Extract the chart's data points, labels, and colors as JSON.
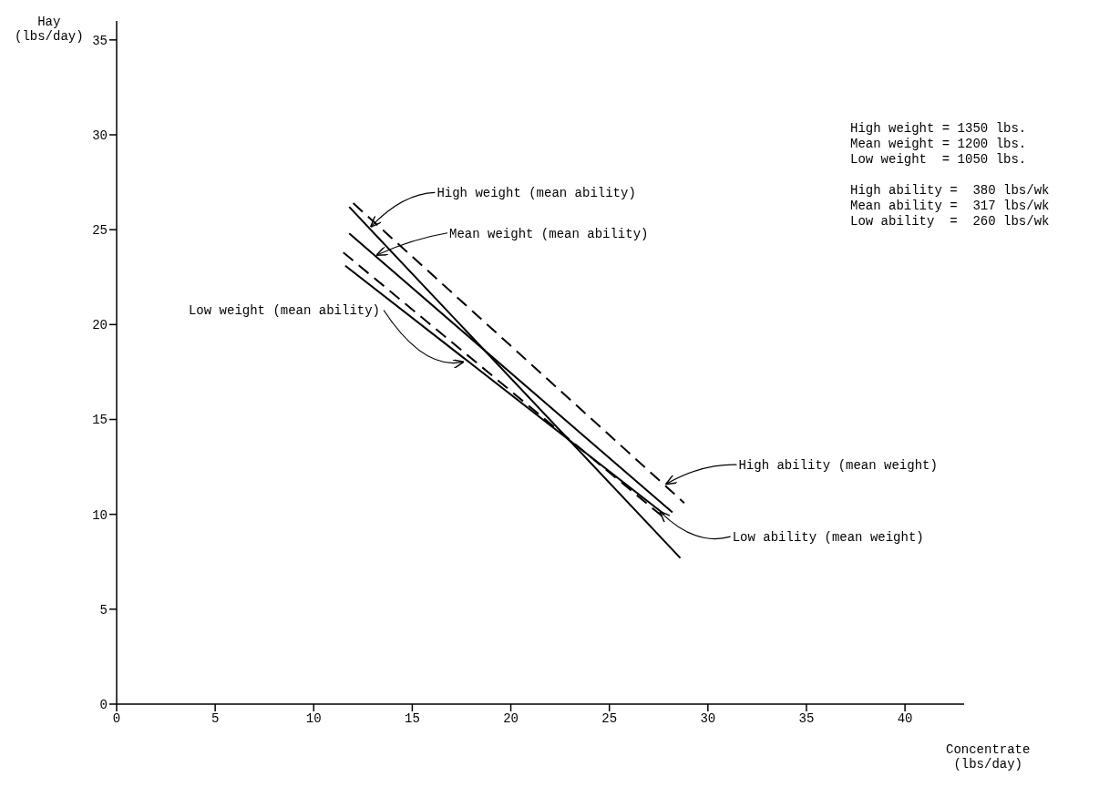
{
  "chart_data": {
    "type": "line",
    "xlabel": "Concentrate\n(lbs/day)",
    "ylabel": "Hay\n(lbs/day)",
    "xlim": [
      0,
      43
    ],
    "xticks": [
      0,
      5,
      10,
      15,
      20,
      25,
      30,
      35,
      40
    ],
    "ylim": [
      0,
      36
    ],
    "yticks": [
      0,
      5,
      10,
      15,
      20,
      25,
      30,
      35
    ],
    "grid": false,
    "legend": false,
    "marker": "none",
    "series": [
      {
        "name": "High weight (mean ability)",
        "color": "#000000",
        "line_style": "solid",
        "x": [
          11.8,
          28.6
        ],
        "values": [
          26.2,
          7.7
        ]
      },
      {
        "name": "Mean weight (mean ability)",
        "color": "#000000",
        "line_style": "solid",
        "x": [
          11.8,
          28.2
        ],
        "values": [
          24.8,
          10.1
        ]
      },
      {
        "name": "Low weight (mean ability)",
        "color": "#000000",
        "line_style": "solid",
        "x": [
          11.6,
          27.8
        ],
        "values": [
          23.1,
          10.0
        ]
      },
      {
        "name": "High ability (mean weight)",
        "color": "#000000",
        "line_style": "dashed",
        "x": [
          12.0,
          28.8
        ],
        "values": [
          26.4,
          10.6
        ]
      },
      {
        "name": "Low ability (mean weight)",
        "color": "#000000",
        "line_style": "dashed",
        "x": [
          11.5,
          27.8
        ],
        "values": [
          23.8,
          9.8
        ]
      }
    ],
    "annotations": [
      "High weight = 1350 lbs.",
      "Mean weight = 1200 lbs.",
      "Low weight  = 1050 lbs.",
      "High ability =  380 lbs/wk",
      "Mean ability =  317 lbs/wk",
      "Low ability  =  260 lbs/wk"
    ]
  }
}
